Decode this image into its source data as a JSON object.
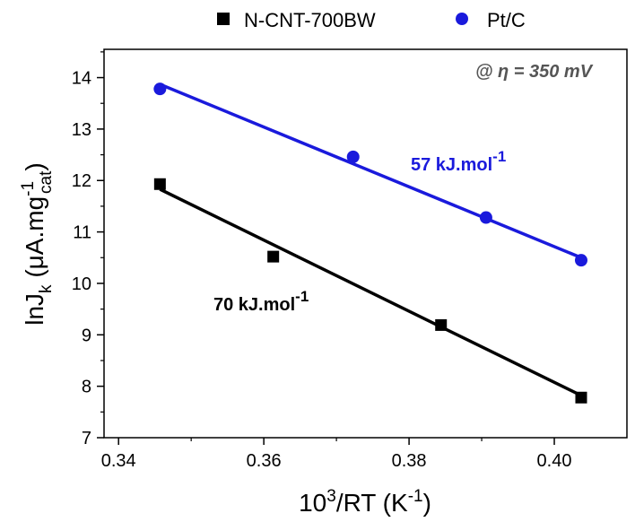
{
  "chart_data": {
    "type": "scatter",
    "xlabel": {
      "base": "10",
      "sup": "3",
      "mid": "/RT (K",
      "sup2": "-1",
      "end": ")"
    },
    "ylabel": {
      "pre": "lnJ",
      "sub": "k",
      "mid": " (μA.mg",
      "sup": "-1",
      "sub2": "cat",
      "end": ")"
    },
    "xlim": [
      0.338,
      0.41
    ],
    "ylim": [
      7,
      14.55
    ],
    "xticks": [
      "0.34",
      "0.36",
      "0.38",
      "0.40"
    ],
    "yticks": [
      "7",
      "8",
      "9",
      "10",
      "11",
      "12",
      "13",
      "14"
    ],
    "condition": "@ η = 350 mV",
    "series": [
      {
        "name": "N-CNT-700BW",
        "marker": "square",
        "color": "#000000",
        "x": [
          0.3457,
          0.3613,
          0.3844,
          0.4037
        ],
        "y": [
          11.93,
          10.52,
          9.19,
          7.78
        ],
        "fit": [
          [
            0.3457,
            11.83
          ],
          [
            0.4037,
            7.82
          ]
        ],
        "annotation": {
          "text": "70 kJ.mol",
          "sup": "-1"
        }
      },
      {
        "name": "Pt/C",
        "marker": "circle",
        "color": "#1a1adc",
        "x": [
          0.3457,
          0.3723,
          0.3906,
          0.4037
        ],
        "y": [
          13.78,
          12.46,
          11.28,
          10.45
        ],
        "fit": [
          [
            0.3457,
            13.87
          ],
          [
            0.4037,
            10.5
          ]
        ],
        "annotation": {
          "text": "57 kJ.mol",
          "sup": "-1"
        }
      }
    ]
  }
}
